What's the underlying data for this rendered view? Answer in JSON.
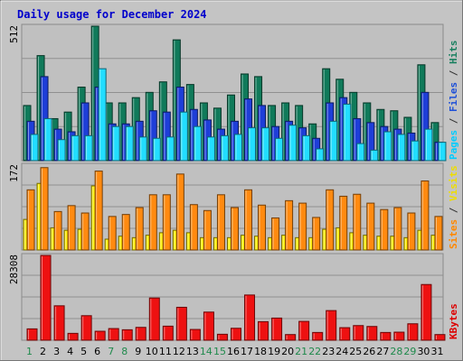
{
  "chart_data": {
    "type": "bar",
    "title": "Daily usage for December 2024",
    "categories": [
      "1",
      "2",
      "3",
      "4",
      "5",
      "6",
      "7",
      "8",
      "9",
      "10",
      "11",
      "12",
      "13",
      "14",
      "15",
      "16",
      "17",
      "18",
      "19",
      "20",
      "21",
      "22",
      "23",
      "24",
      "25",
      "26",
      "27",
      "28",
      "29",
      "30",
      "31"
    ],
    "weekend_days": [
      "1",
      "7",
      "8",
      "14",
      "15",
      "21",
      "22",
      "28",
      "29"
    ],
    "panels": [
      {
        "name": "hits-files-pages",
        "ymax_label": "512",
        "ylim": [
          0,
          512
        ],
        "side_labels": [
          {
            "text": "Pages",
            "color": "#00ccff"
          },
          {
            "text": " / ",
            "color": "#333333"
          },
          {
            "text": "Files",
            "color": "#1e50d8"
          },
          {
            "text": " / ",
            "color": "#333333"
          },
          {
            "text": "Hits",
            "color": "#1a8060"
          }
        ],
        "series": [
          {
            "name": "Hits",
            "color": "#107a5a",
            "values": [
              210,
              400,
              160,
              185,
              280,
              512,
              220,
              220,
              240,
              260,
              300,
              460,
              290,
              220,
              200,
              250,
              330,
              320,
              210,
              220,
              210,
              140,
              350,
              310,
              260,
              220,
              195,
              190,
              165,
              365,
              145
            ]
          },
          {
            "name": "Files",
            "color": "#1e3ed8",
            "values": [
              150,
              320,
              120,
              110,
              220,
              280,
              140,
              140,
              150,
              190,
              185,
              280,
              195,
              155,
              120,
              150,
              235,
              210,
              130,
              150,
              125,
              85,
              220,
              240,
              160,
              145,
              130,
              120,
              105,
              260,
              70
            ]
          },
          {
            "name": "Pages",
            "color": "#22ddff",
            "values": [
              100,
              160,
              80,
              95,
              95,
              350,
              130,
              130,
              90,
              85,
              90,
              185,
              130,
              90,
              95,
              100,
              125,
              125,
              85,
              135,
              95,
              45,
              150,
              215,
              65,
              40,
              110,
              100,
              75,
              120,
              70
            ]
          }
        ]
      },
      {
        "name": "sites-visits",
        "ymax_label": "172",
        "ylim": [
          0,
          172
        ],
        "side_labels": [
          {
            "text": "Sites",
            "color": "#ff8800"
          },
          {
            "text": " / ",
            "color": "#333333"
          },
          {
            "text": "Visits",
            "color": "#eedd00"
          }
        ],
        "series": [
          {
            "name": "Visits",
            "color": "#ffee00",
            "values": [
              62,
              135,
              45,
              40,
              42,
              130,
              22,
              28,
              25,
              30,
              35,
              40,
              35,
              25,
              25,
              25,
              30,
              28,
              25,
              30,
              25,
              25,
              42,
              45,
              35,
              30,
              28,
              28,
              25,
              40,
              30
            ]
          },
          {
            "name": "Sites",
            "color": "#ff8a10",
            "values": [
              122,
              167,
              78,
              90,
              75,
              160,
              68,
              72,
              86,
              112,
              112,
              154,
              92,
              80,
              112,
              86,
              122,
              91,
              65,
              100,
              95,
              66,
              122,
              109,
              113,
              95,
              82,
              86,
              75,
              140,
              68
            ]
          }
        ]
      },
      {
        "name": "kbytes",
        "ymax_label": "28308",
        "ylim": [
          0,
          28308
        ],
        "side_labels": [
          {
            "text": "KBytes",
            "color": "#dd0000"
          }
        ],
        "series": [
          {
            "name": "KBytes",
            "color": "#ee1111",
            "values": [
              3800,
              28308,
              11500,
              2300,
              8200,
              3000,
              3900,
              3500,
              4300,
              14100,
              4700,
              11000,
              3600,
              9400,
              2000,
              4000,
              15100,
              6200,
              7400,
              1900,
              6300,
              2600,
              9900,
              4200,
              4900,
              4600,
              2600,
              2700,
              5500,
              18600,
              1900
            ]
          }
        ]
      }
    ]
  }
}
